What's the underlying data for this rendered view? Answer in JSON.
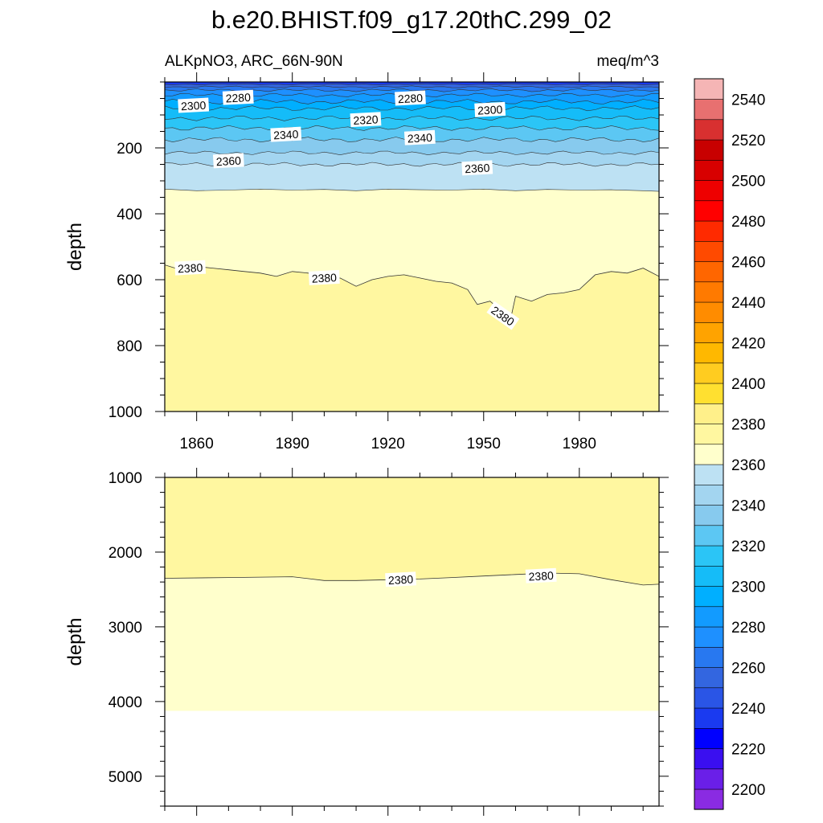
{
  "chart_data": {
    "type": "contour",
    "title": "b.e20.BHIST.f09_g17.20thC.299_02",
    "left_subtitle": "ALKpNO3, ARC_66N-90N",
    "right_subtitle": "meq/m^3",
    "xlabel": "",
    "ylabel": "depth",
    "x_range": [
      1850,
      2005
    ],
    "x_ticks": [
      1860,
      1890,
      1920,
      1950,
      1980
    ],
    "x_tick_labels": [
      "1860",
      "1890",
      "1920",
      "1950",
      "1980"
    ],
    "panels": [
      {
        "name": "upper",
        "ylim": [
          0,
          1000
        ],
        "y_ticks": [
          200,
          400,
          600,
          800,
          1000
        ],
        "y_tick_labels": [
          "200",
          "400",
          "600",
          "800",
          "1000"
        ],
        "y_minor_step": 50,
        "show_x_labels": true,
        "band_boundaries": [
          {
            "level": 2260,
            "depth": 7,
            "wiggle": 1
          },
          {
            "level": 2270,
            "depth": 15,
            "wiggle": 2
          },
          {
            "level": 2280,
            "depth": 25,
            "wiggle": 3
          },
          {
            "level": 2290,
            "depth": 40,
            "wiggle": 4
          },
          {
            "level": 2300,
            "depth": 60,
            "wiggle": 5
          },
          {
            "level": 2310,
            "depth": 80,
            "wiggle": 5
          },
          {
            "level": 2320,
            "depth": 110,
            "wiggle": 5
          },
          {
            "level": 2330,
            "depth": 140,
            "wiggle": 5
          },
          {
            "level": 2340,
            "depth": 175,
            "wiggle": 5
          },
          {
            "level": 2350,
            "depth": 215,
            "wiggle": 4
          },
          {
            "level": 2360,
            "depth": 250,
            "wiggle": 4
          }
        ],
        "contour_2370": {
          "x": [
            1850,
            1860,
            1870,
            1880,
            1890,
            1900,
            1910,
            1920,
            1930,
            1940,
            1950,
            1960,
            1970,
            1980,
            1990,
            2000,
            2005
          ],
          "depth": [
            325,
            330,
            328,
            325,
            328,
            326,
            330,
            325,
            327,
            328,
            325,
            330,
            326,
            328,
            327,
            330,
            332
          ]
        },
        "contour_2380": {
          "x": [
            1850,
            1855,
            1860,
            1865,
            1870,
            1875,
            1880,
            1885,
            1890,
            1895,
            1900,
            1905,
            1910,
            1915,
            1920,
            1925,
            1930,
            1935,
            1940,
            1945,
            1948,
            1952,
            1955,
            1958,
            1960,
            1965,
            1970,
            1975,
            1980,
            1985,
            1990,
            1995,
            2000,
            2005
          ],
          "depth": [
            555,
            570,
            560,
            565,
            570,
            575,
            580,
            590,
            575,
            580,
            600,
            595,
            620,
            600,
            590,
            585,
            595,
            605,
            610,
            630,
            675,
            665,
            690,
            740,
            650,
            665,
            645,
            640,
            630,
            585,
            575,
            580,
            565,
            590
          ]
        },
        "labels": [
          {
            "text": "2300",
            "x": 1859,
            "depth": 72
          },
          {
            "text": "2280",
            "x": 1873,
            "depth": 48
          },
          {
            "text": "2280",
            "x": 1927,
            "depth": 50
          },
          {
            "text": "2300",
            "x": 1952,
            "depth": 85
          },
          {
            "text": "2320",
            "x": 1913,
            "depth": 115
          },
          {
            "text": "2340",
            "x": 1888,
            "depth": 160
          },
          {
            "text": "2340",
            "x": 1930,
            "depth": 170
          },
          {
            "text": "2360",
            "x": 1870,
            "depth": 240
          },
          {
            "text": "2360",
            "x": 1948,
            "depth": 262
          },
          {
            "text": "2380",
            "x": 1858,
            "depth": 565
          },
          {
            "text": "2380",
            "x": 1900,
            "depth": 595
          },
          {
            "text": "2380",
            "x": 1956,
            "depth": 710
          }
        ]
      },
      {
        "name": "lower",
        "ylim": [
          1000,
          5400
        ],
        "y_ticks": [
          1000,
          2000,
          3000,
          4000,
          5000
        ],
        "y_tick_labels": [
          "1000",
          "2000",
          "3000",
          "4000",
          "5000"
        ],
        "y_minor_step": 200,
        "show_x_labels": false,
        "seafloor_depth": 4125,
        "contour_2380": {
          "x": [
            1850,
            1870,
            1890,
            1900,
            1910,
            1920,
            1930,
            1940,
            1950,
            1960,
            1970,
            1980,
            1990,
            2000,
            2005
          ],
          "depth": [
            2350,
            2340,
            2330,
            2380,
            2380,
            2370,
            2360,
            2340,
            2320,
            2300,
            2280,
            2290,
            2370,
            2440,
            2430
          ]
        },
        "labels": [
          {
            "text": "2380",
            "x": 1924,
            "depth": 2370
          },
          {
            "text": "2380",
            "x": 1968,
            "depth": 2320
          }
        ]
      }
    ],
    "colorbar": {
      "levels": [
        2200,
        2210,
        2220,
        2230,
        2240,
        2250,
        2260,
        2270,
        2280,
        2290,
        2300,
        2310,
        2320,
        2330,
        2340,
        2350,
        2360,
        2370,
        2380,
        2390,
        2400,
        2410,
        2420,
        2430,
        2440,
        2450,
        2460,
        2470,
        2480,
        2490,
        2500,
        2510,
        2520,
        2530,
        2540,
        2550
      ],
      "tick_labels": [
        "2200",
        "2220",
        "2240",
        "2260",
        "2280",
        "2300",
        "2320",
        "2340",
        "2360",
        "2380",
        "2400",
        "2420",
        "2440",
        "2460",
        "2480",
        "2500",
        "2520",
        "2540"
      ],
      "colors": [
        "#8A2BE2",
        "#6A1FE8",
        "#3A0FF0",
        "#0000FF",
        "#1A3AF0",
        "#2A55E6",
        "#3366E0",
        "#2878F0",
        "#1E90FF",
        "#129BFF",
        "#00AFFF",
        "#15BCF8",
        "#2BC5F6",
        "#5CC7F3",
        "#87CAEE",
        "#A3D5F0",
        "#BDE1F3",
        "#FFFFCC",
        "#FFF7A0",
        "#FFF08A",
        "#FFE030",
        "#FFCC20",
        "#FFB800",
        "#FFA300",
        "#FF8C00",
        "#FF7A00",
        "#FF6600",
        "#FF4A00",
        "#FF2A00",
        "#FF0000",
        "#EE0000",
        "#D80000",
        "#C80000",
        "#D83030",
        "#E87070",
        "#F5B5B5"
      ]
    }
  }
}
